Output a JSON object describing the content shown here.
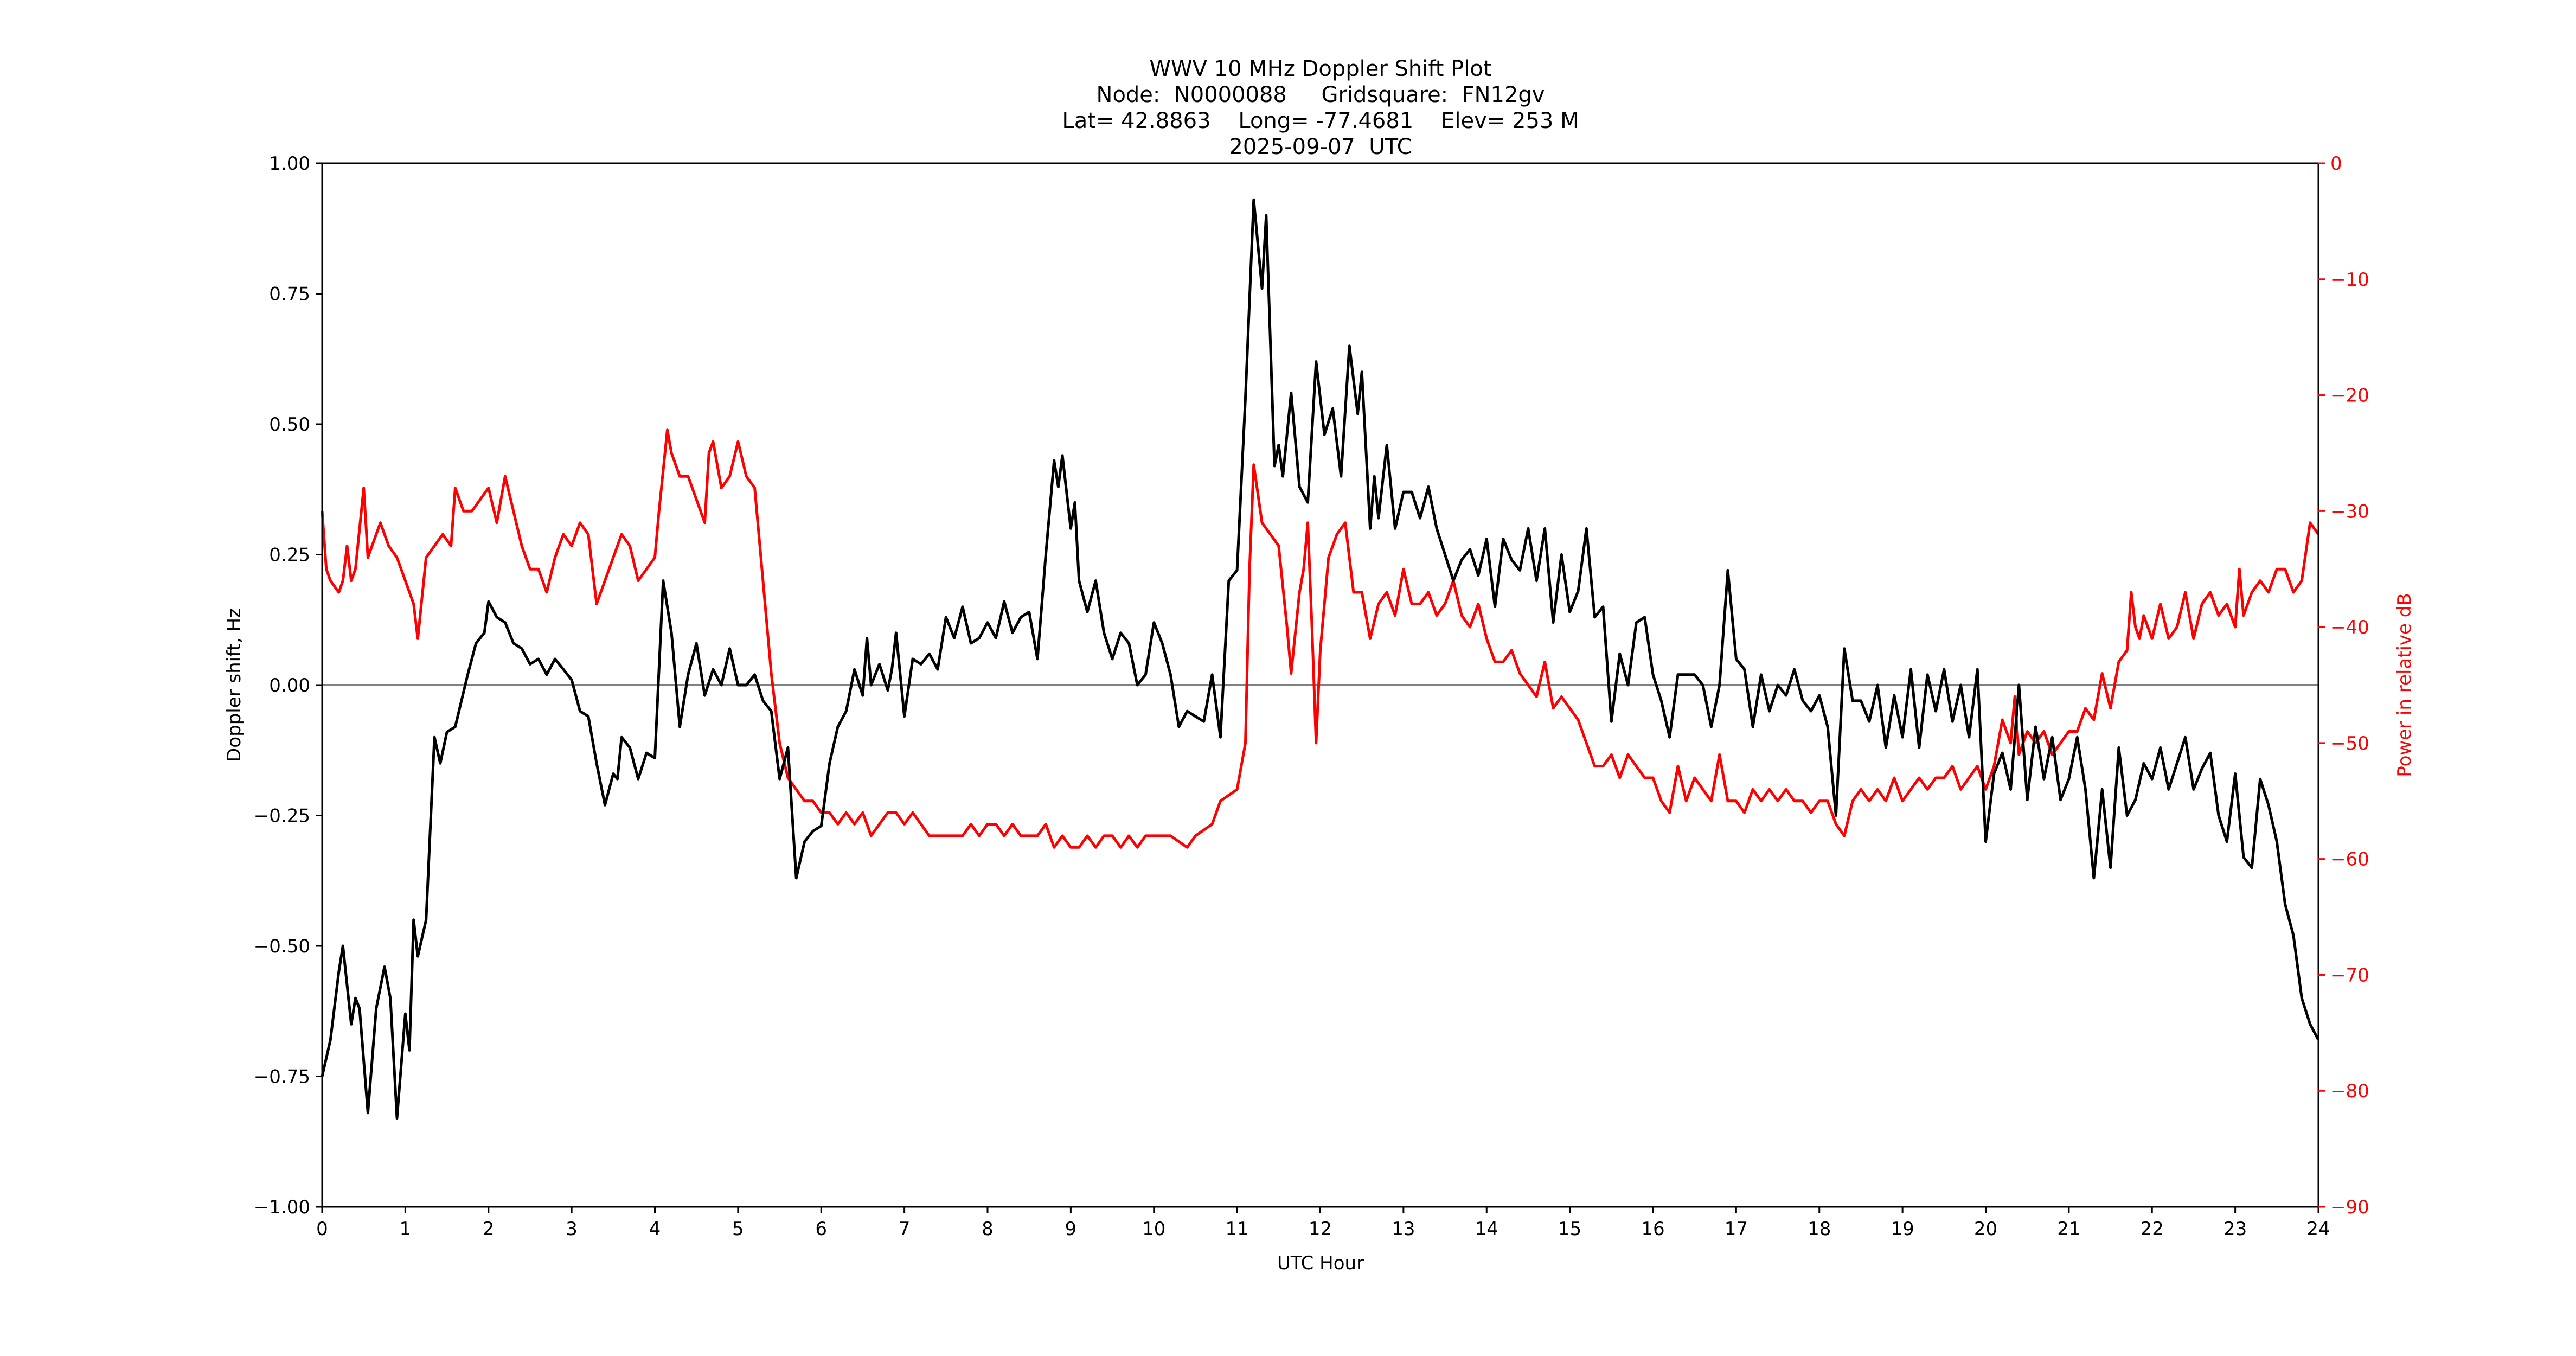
{
  "chart_data": {
    "type": "line",
    "title": "WWV 10 MHz Doppler Shift Plot",
    "subtitle_lines": [
      "Node:  N0000088     Gridsquare:  FN12gv",
      "Lat= 42.8863    Long= -77.4681    Elev= 253 M",
      "2025-09-07  UTC"
    ],
    "xlabel": "UTC Hour",
    "ylabel": "Doppler shift, Hz",
    "ylabel_right": "Power in relative dB",
    "xlim": [
      0,
      24
    ],
    "ylim": [
      -1.0,
      1.0
    ],
    "ylim_right": [
      -90,
      0
    ],
    "x_ticks": [
      0,
      1,
      2,
      3,
      4,
      5,
      6,
      7,
      8,
      9,
      10,
      11,
      12,
      13,
      14,
      15,
      16,
      17,
      18,
      19,
      20,
      21,
      22,
      23,
      24
    ],
    "y_ticks": [
      "1.00",
      "0.75",
      "0.50",
      "0.25",
      "0.00",
      "−0.25",
      "−0.50",
      "−0.75",
      "−1.00"
    ],
    "y_tick_values": [
      1.0,
      0.75,
      0.5,
      0.25,
      0.0,
      -0.25,
      -0.5,
      -0.75,
      -1.0
    ],
    "y_right_ticks": [
      "0",
      "−10",
      "−20",
      "−30",
      "−40",
      "−50",
      "−60",
      "−70",
      "−80",
      "−90"
    ],
    "y_right_tick_values": [
      0,
      -10,
      -20,
      -30,
      -40,
      -50,
      -60,
      -70,
      -80,
      -90
    ],
    "zero_line": {
      "y": 0.0,
      "color": "#808080"
    },
    "grid": false,
    "legend": null,
    "series": [
      {
        "name": "Doppler shift",
        "axis": "left",
        "color": "#000000",
        "x": [
          0.0,
          0.1,
          0.2,
          0.25,
          0.35,
          0.4,
          0.45,
          0.55,
          0.65,
          0.75,
          0.82,
          0.9,
          1.0,
          1.05,
          1.1,
          1.15,
          1.25,
          1.35,
          1.42,
          1.5,
          1.6,
          1.75,
          1.85,
          1.95,
          2.0,
          2.1,
          2.2,
          2.3,
          2.4,
          2.5,
          2.6,
          2.7,
          2.8,
          2.9,
          3.0,
          3.1,
          3.2,
          3.3,
          3.4,
          3.5,
          3.55,
          3.6,
          3.7,
          3.8,
          3.9,
          4.0,
          4.1,
          4.2,
          4.3,
          4.4,
          4.5,
          4.6,
          4.7,
          4.8,
          4.9,
          5.0,
          5.1,
          5.2,
          5.3,
          5.4,
          5.5,
          5.6,
          5.7,
          5.8,
          5.9,
          6.0,
          6.1,
          6.2,
          6.3,
          6.4,
          6.5,
          6.55,
          6.6,
          6.7,
          6.8,
          6.85,
          6.9,
          7.0,
          7.1,
          7.2,
          7.3,
          7.4,
          7.5,
          7.6,
          7.7,
          7.8,
          7.9,
          8.0,
          8.1,
          8.2,
          8.3,
          8.4,
          8.5,
          8.6,
          8.7,
          8.8,
          8.85,
          8.9,
          9.0,
          9.05,
          9.1,
          9.2,
          9.3,
          9.4,
          9.5,
          9.6,
          9.7,
          9.8,
          9.9,
          10.0,
          10.1,
          10.2,
          10.3,
          10.4,
          10.5,
          10.6,
          10.7,
          10.8,
          10.9,
          11.0,
          11.1,
          11.2,
          11.3,
          11.35,
          11.45,
          11.5,
          11.55,
          11.65,
          11.75,
          11.85,
          11.95,
          12.05,
          12.15,
          12.25,
          12.35,
          12.45,
          12.5,
          12.6,
          12.65,
          12.7,
          12.8,
          12.9,
          13.0,
          13.1,
          13.2,
          13.3,
          13.4,
          13.5,
          13.6,
          13.7,
          13.8,
          13.9,
          14.0,
          14.1,
          14.2,
          14.3,
          14.4,
          14.5,
          14.6,
          14.7,
          14.8,
          14.9,
          15.0,
          15.1,
          15.2,
          15.3,
          15.4,
          15.5,
          15.6,
          15.7,
          15.8,
          15.9,
          16.0,
          16.1,
          16.2,
          16.3,
          16.4,
          16.5,
          16.6,
          16.7,
          16.8,
          16.9,
          17.0,
          17.1,
          17.2,
          17.3,
          17.4,
          17.5,
          17.6,
          17.7,
          17.8,
          17.9,
          18.0,
          18.1,
          18.2,
          18.3,
          18.4,
          18.5,
          18.6,
          18.7,
          18.8,
          18.9,
          19.0,
          19.1,
          19.2,
          19.3,
          19.4,
          19.5,
          19.6,
          19.7,
          19.8,
          19.9,
          20.0,
          20.1,
          20.2,
          20.3,
          20.4,
          20.5,
          20.6,
          20.7,
          20.8,
          20.9,
          21.0,
          21.1,
          21.2,
          21.3,
          21.4,
          21.5,
          21.6,
          21.7,
          21.8,
          21.9,
          22.0,
          22.1,
          22.2,
          22.3,
          22.4,
          22.5,
          22.6,
          22.7,
          22.8,
          22.9,
          23.0,
          23.1,
          23.2,
          23.3,
          23.4,
          23.5,
          23.6,
          23.7,
          23.8,
          23.9,
          24.0
        ],
        "values": [
          -0.75,
          -0.68,
          -0.55,
          -0.5,
          -0.65,
          -0.6,
          -0.62,
          -0.82,
          -0.62,
          -0.54,
          -0.6,
          -0.83,
          -0.63,
          -0.7,
          -0.45,
          -0.52,
          -0.45,
          -0.1,
          -0.15,
          -0.09,
          -0.08,
          0.02,
          0.08,
          0.1,
          0.16,
          0.13,
          0.12,
          0.08,
          0.07,
          0.04,
          0.05,
          0.02,
          0.05,
          0.03,
          0.01,
          -0.05,
          -0.06,
          -0.15,
          -0.23,
          -0.17,
          -0.18,
          -0.1,
          -0.12,
          -0.18,
          -0.13,
          -0.14,
          0.2,
          0.1,
          -0.08,
          0.02,
          0.08,
          -0.02,
          0.03,
          0.0,
          0.07,
          0.0,
          0.0,
          0.02,
          -0.03,
          -0.05,
          -0.18,
          -0.12,
          -0.37,
          -0.3,
          -0.28,
          -0.27,
          -0.15,
          -0.08,
          -0.05,
          0.03,
          -0.02,
          0.09,
          0.0,
          0.04,
          -0.01,
          0.03,
          0.1,
          -0.06,
          0.05,
          0.04,
          0.06,
          0.03,
          0.13,
          0.09,
          0.15,
          0.08,
          0.09,
          0.12,
          0.09,
          0.16,
          0.1,
          0.13,
          0.14,
          0.05,
          0.25,
          0.43,
          0.38,
          0.44,
          0.3,
          0.35,
          0.2,
          0.14,
          0.2,
          0.1,
          0.05,
          0.1,
          0.08,
          0.0,
          0.02,
          0.12,
          0.08,
          0.02,
          -0.08,
          -0.05,
          -0.06,
          -0.07,
          0.02,
          -0.1,
          0.2,
          0.22,
          0.55,
          0.93,
          0.76,
          0.9,
          0.42,
          0.46,
          0.4,
          0.56,
          0.38,
          0.35,
          0.62,
          0.48,
          0.53,
          0.4,
          0.65,
          0.52,
          0.6,
          0.3,
          0.4,
          0.32,
          0.46,
          0.3,
          0.37,
          0.37,
          0.32,
          0.38,
          0.3,
          0.25,
          0.2,
          0.24,
          0.26,
          0.21,
          0.28,
          0.15,
          0.28,
          0.24,
          0.22,
          0.3,
          0.2,
          0.3,
          0.12,
          0.25,
          0.14,
          0.18,
          0.3,
          0.13,
          0.15,
          -0.07,
          0.06,
          0.0,
          0.12,
          0.13,
          0.02,
          -0.03,
          -0.1,
          0.02,
          0.02,
          0.02,
          0.0,
          -0.08,
          0.0,
          0.22,
          0.05,
          0.03,
          -0.08,
          0.02,
          -0.05,
          0.0,
          -0.02,
          0.03,
          -0.03,
          -0.05,
          -0.02,
          -0.08,
          -0.25,
          0.07,
          -0.03,
          -0.03,
          -0.07,
          0.0,
          -0.12,
          -0.02,
          -0.1,
          0.03,
          -0.12,
          0.02,
          -0.05,
          0.03,
          -0.07,
          0.0,
          -0.1,
          0.03,
          -0.3,
          -0.17,
          -0.13,
          -0.2,
          0.0,
          -0.22,
          -0.08,
          -0.18,
          -0.1,
          -0.22,
          -0.18,
          -0.1,
          -0.2,
          -0.37,
          -0.2,
          -0.35,
          -0.12,
          -0.25,
          -0.22,
          -0.15,
          -0.18,
          -0.12,
          -0.2,
          -0.15,
          -0.1,
          -0.2,
          -0.16,
          -0.13,
          -0.25,
          -0.3,
          -0.17,
          -0.33,
          -0.35,
          -0.18,
          -0.23,
          -0.3,
          -0.42,
          -0.48,
          -0.6,
          -0.65,
          -0.68
        ]
      },
      {
        "name": "Power",
        "axis": "right",
        "color": "#ff0000",
        "x": [
          0.0,
          0.05,
          0.1,
          0.2,
          0.25,
          0.3,
          0.35,
          0.4,
          0.5,
          0.55,
          0.6,
          0.7,
          0.8,
          0.9,
          1.0,
          1.1,
          1.15,
          1.25,
          1.35,
          1.45,
          1.55,
          1.6,
          1.7,
          1.8,
          1.9,
          2.0,
          2.1,
          2.2,
          2.3,
          2.4,
          2.5,
          2.6,
          2.7,
          2.8,
          2.9,
          3.0,
          3.1,
          3.2,
          3.3,
          3.4,
          3.5,
          3.6,
          3.7,
          3.8,
          3.9,
          4.0,
          4.05,
          4.15,
          4.2,
          4.3,
          4.4,
          4.5,
          4.6,
          4.65,
          4.7,
          4.8,
          4.9,
          5.0,
          5.1,
          5.2,
          5.3,
          5.4,
          5.5,
          5.6,
          5.7,
          5.8,
          5.9,
          6.0,
          6.1,
          6.2,
          6.3,
          6.4,
          6.5,
          6.6,
          6.7,
          6.8,
          6.9,
          7.0,
          7.1,
          7.2,
          7.3,
          7.4,
          7.5,
          7.6,
          7.7,
          7.8,
          7.9,
          8.0,
          8.1,
          8.2,
          8.3,
          8.4,
          8.5,
          8.6,
          8.7,
          8.8,
          8.9,
          9.0,
          9.1,
          9.2,
          9.3,
          9.4,
          9.5,
          9.6,
          9.7,
          9.8,
          9.9,
          10.0,
          10.2,
          10.4,
          10.5,
          10.7,
          10.8,
          11.0,
          11.05,
          11.1,
          11.15,
          11.2,
          11.3,
          11.4,
          11.5,
          11.6,
          11.65,
          11.75,
          11.8,
          11.85,
          11.9,
          11.95,
          12.0,
          12.1,
          12.2,
          12.3,
          12.4,
          12.5,
          12.6,
          12.7,
          12.8,
          12.9,
          13.0,
          13.1,
          13.2,
          13.3,
          13.4,
          13.5,
          13.6,
          13.7,
          13.8,
          13.9,
          14.0,
          14.1,
          14.2,
          14.3,
          14.4,
          14.5,
          14.6,
          14.7,
          14.8,
          14.9,
          15.0,
          15.1,
          15.2,
          15.3,
          15.4,
          15.5,
          15.6,
          15.7,
          15.8,
          15.9,
          16.0,
          16.1,
          16.2,
          16.3,
          16.4,
          16.5,
          16.6,
          16.7,
          16.8,
          16.9,
          17.0,
          17.1,
          17.2,
          17.3,
          17.4,
          17.5,
          17.6,
          17.7,
          17.8,
          17.9,
          18.0,
          18.1,
          18.2,
          18.3,
          18.4,
          18.5,
          18.6,
          18.7,
          18.8,
          18.9,
          19.0,
          19.1,
          19.2,
          19.3,
          19.4,
          19.5,
          19.6,
          19.7,
          19.8,
          19.9,
          20.0,
          20.1,
          20.2,
          20.3,
          20.35,
          20.4,
          20.5,
          20.6,
          20.7,
          20.8,
          20.9,
          21.0,
          21.1,
          21.2,
          21.3,
          21.4,
          21.5,
          21.6,
          21.7,
          21.75,
          21.8,
          21.85,
          21.9,
          22.0,
          22.1,
          22.2,
          22.3,
          22.4,
          22.5,
          22.6,
          22.7,
          22.8,
          22.9,
          23.0,
          23.05,
          23.1,
          23.2,
          23.3,
          23.4,
          23.5,
          23.6,
          23.7,
          23.8,
          23.9,
          24.0
        ],
        "values": [
          -30,
          -35,
          -36,
          -37,
          -36,
          -33,
          -36,
          -35,
          -28,
          -34,
          -33,
          -31,
          -33,
          -34,
          -36,
          -38,
          -41,
          -34,
          -33,
          -32,
          -33,
          -28,
          -30,
          -30,
          -29,
          -28,
          -31,
          -27,
          -30,
          -33,
          -35,
          -35,
          -37,
          -34,
          -32,
          -33,
          -31,
          -32,
          -38,
          -36,
          -34,
          -32,
          -33,
          -36,
          -35,
          -34,
          -30,
          -23,
          -25,
          -27,
          -27,
          -29,
          -31,
          -25,
          -24,
          -28,
          -27,
          -24,
          -27,
          -28,
          -36,
          -44,
          -50,
          -53,
          -54,
          -55,
          -55,
          -56,
          -56,
          -57,
          -56,
          -57,
          -56,
          -58,
          -57,
          -56,
          -56,
          -57,
          -56,
          -57,
          -58,
          -58,
          -58,
          -58,
          -58,
          -57,
          -58,
          -57,
          -57,
          -58,
          -57,
          -58,
          -58,
          -58,
          -57,
          -59,
          -58,
          -59,
          -59,
          -58,
          -59,
          -58,
          -58,
          -59,
          -58,
          -59,
          -58,
          -58,
          -58,
          -59,
          -58,
          -57,
          -55,
          -54,
          -52,
          -50,
          -35,
          -26,
          -31,
          -32,
          -33,
          -40,
          -44,
          -37,
          -35,
          -31,
          -40,
          -50,
          -42,
          -34,
          -32,
          -31,
          -37,
          -37,
          -41,
          -38,
          -37,
          -39,
          -35,
          -38,
          -38,
          -37,
          -39,
          -38,
          -36,
          -39,
          -40,
          -38,
          -41,
          -43,
          -43,
          -42,
          -44,
          -45,
          -46,
          -43,
          -47,
          -46,
          -47,
          -48,
          -50,
          -52,
          -52,
          -51,
          -53,
          -51,
          -52,
          -53,
          -53,
          -55,
          -56,
          -52,
          -55,
          -53,
          -54,
          -55,
          -51,
          -55,
          -55,
          -56,
          -54,
          -55,
          -54,
          -55,
          -54,
          -55,
          -55,
          -56,
          -55,
          -55,
          -57,
          -58,
          -55,
          -54,
          -55,
          -54,
          -55,
          -53,
          -55,
          -54,
          -53,
          -54,
          -53,
          -53,
          -52,
          -54,
          -53,
          -52,
          -54,
          -52,
          -48,
          -50,
          -46,
          -51,
          -49,
          -50,
          -49,
          -51,
          -50,
          -49,
          -49,
          -47,
          -48,
          -44,
          -47,
          -43,
          -42,
          -37,
          -40,
          -41,
          -39,
          -41,
          -38,
          -41,
          -40,
          -37,
          -41,
          -38,
          -37,
          -39,
          -38,
          -40,
          -35,
          -39,
          -37,
          -36,
          -37,
          -35,
          -35,
          -37,
          -36,
          -31,
          -32
        ]
      }
    ]
  },
  "layout_colors": {
    "left_series": "#000000",
    "right_series": "#ff0000",
    "zero_line": "#808080"
  }
}
